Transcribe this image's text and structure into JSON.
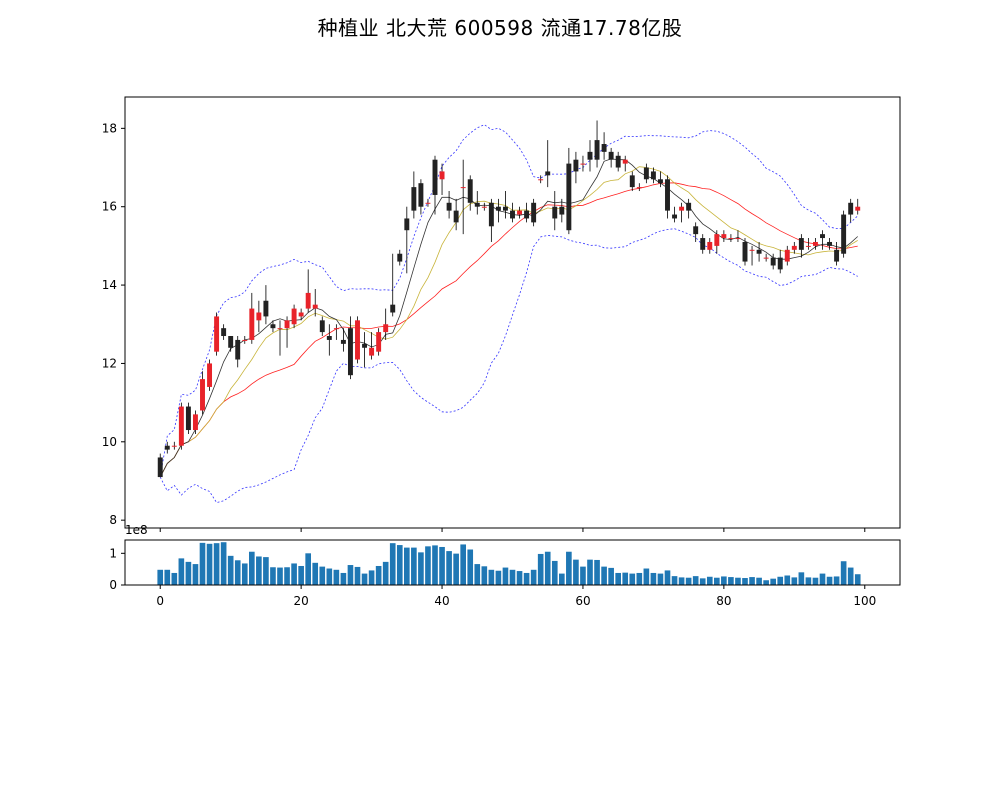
{
  "chart_data": [
    {
      "type": "candlestick",
      "title": "种植业 北大荒 600598 流通17.78亿股",
      "x_ticks": [
        0,
        20,
        40,
        60,
        80,
        100
      ],
      "y_ticks": [
        8,
        10,
        12,
        14,
        16,
        18
      ],
      "xlim": [
        -5,
        105
      ],
      "ylim": [
        7.8,
        18.8
      ],
      "grid": false,
      "up_color": "#e8232a",
      "down_color": "#222222",
      "ma_short_color": "#333333",
      "ma_mid_color": "#c8b43a",
      "ma_long_color": "#ff2020",
      "band_color": "#3333ff",
      "candles": [
        [
          0,
          9.6,
          9.1,
          9.7,
          9.1
        ],
        [
          1,
          9.9,
          9.8,
          10.0,
          9.7
        ],
        [
          2,
          9.9,
          9.9,
          10.0,
          9.8
        ],
        [
          3,
          9.9,
          10.9,
          11.0,
          9.8
        ],
        [
          4,
          10.9,
          10.3,
          11.0,
          10.2
        ],
        [
          5,
          10.3,
          10.7,
          10.8,
          10.2
        ],
        [
          6,
          10.8,
          11.6,
          11.8,
          10.7
        ],
        [
          7,
          11.4,
          12.0,
          12.1,
          11.3
        ],
        [
          8,
          12.3,
          13.2,
          13.3,
          12.2
        ],
        [
          9,
          12.9,
          12.7,
          13.0,
          12.6
        ],
        [
          10,
          12.7,
          12.4,
          12.7,
          12.3
        ],
        [
          11,
          12.6,
          12.1,
          12.7,
          11.9
        ],
        [
          12,
          12.6,
          12.6,
          12.7,
          12.5
        ],
        [
          13,
          12.6,
          13.4,
          13.8,
          12.5
        ],
        [
          14,
          13.1,
          13.3,
          13.6,
          12.8
        ],
        [
          15,
          13.6,
          13.2,
          14.0,
          13.0
        ],
        [
          16,
          13.0,
          12.9,
          13.1,
          12.8
        ],
        [
          17,
          12.9,
          12.9,
          13.1,
          12.2
        ],
        [
          18,
          12.9,
          13.1,
          13.2,
          12.4
        ],
        [
          19,
          13.0,
          13.4,
          13.5,
          12.9
        ],
        [
          20,
          13.2,
          13.3,
          13.4,
          13.1
        ],
        [
          21,
          13.4,
          13.8,
          14.4,
          13.3
        ],
        [
          22,
          13.4,
          13.5,
          13.9,
          13.2
        ],
        [
          23,
          13.1,
          12.8,
          13.2,
          12.7
        ],
        [
          24,
          12.7,
          12.6,
          13.0,
          12.2
        ],
        [
          25,
          12.9,
          12.9,
          13.0,
          12.6
        ],
        [
          26,
          12.6,
          12.5,
          12.9,
          12.3
        ],
        [
          27,
          12.9,
          11.7,
          13.2,
          11.6
        ],
        [
          28,
          12.1,
          13.1,
          13.2,
          12.0
        ],
        [
          29,
          12.5,
          12.4,
          12.8,
          11.9
        ],
        [
          30,
          12.2,
          12.4,
          12.8,
          12.1
        ],
        [
          31,
          12.3,
          12.8,
          12.9,
          12.2
        ],
        [
          32,
          12.8,
          13.0,
          13.4,
          12.6
        ],
        [
          33,
          13.5,
          13.3,
          14.8,
          13.2
        ],
        [
          34,
          14.8,
          14.6,
          14.9,
          14.5
        ],
        [
          35,
          15.7,
          15.4,
          16.0,
          14.3
        ],
        [
          36,
          16.5,
          15.9,
          16.9,
          15.7
        ],
        [
          37,
          16.6,
          16.0,
          16.7,
          15.8
        ],
        [
          38,
          16.1,
          16.1,
          16.2,
          16.0
        ],
        [
          39,
          17.2,
          16.3,
          17.3,
          15.8
        ],
        [
          40,
          16.7,
          16.9,
          17.1,
          16.3
        ],
        [
          41,
          16.1,
          15.9,
          16.4,
          15.7
        ],
        [
          42,
          15.9,
          15.6,
          16.2,
          15.4
        ],
        [
          43,
          16.5,
          16.5,
          17.2,
          15.3
        ],
        [
          44,
          16.7,
          16.1,
          16.8,
          15.9
        ],
        [
          45,
          16.1,
          16.0,
          16.4,
          15.8
        ],
        [
          46,
          16.0,
          16.0,
          16.1,
          15.9
        ],
        [
          47,
          16.1,
          15.5,
          16.2,
          15.1
        ],
        [
          48,
          16.0,
          15.9,
          16.2,
          15.6
        ],
        [
          49,
          16.0,
          15.9,
          16.4,
          15.7
        ],
        [
          50,
          15.9,
          15.7,
          16.1,
          15.6
        ],
        [
          51,
          15.8,
          15.9,
          16.0,
          15.7
        ],
        [
          52,
          15.9,
          15.7,
          16.1,
          15.6
        ],
        [
          53,
          16.1,
          15.6,
          16.2,
          15.5
        ],
        [
          54,
          16.7,
          16.7,
          16.8,
          16.6
        ],
        [
          55,
          16.9,
          16.8,
          17.7,
          16.5
        ],
        [
          56,
          16.0,
          15.7,
          16.4,
          15.4
        ],
        [
          57,
          16.0,
          15.8,
          16.2,
          15.6
        ],
        [
          58,
          17.1,
          15.4,
          17.5,
          15.3
        ],
        [
          59,
          17.2,
          16.9,
          17.4,
          16.6
        ],
        [
          60,
          17.1,
          17.1,
          17.3,
          16.9
        ],
        [
          61,
          17.4,
          17.2,
          17.7,
          16.9
        ],
        [
          62,
          17.7,
          17.2,
          18.2,
          17.0
        ],
        [
          63,
          17.6,
          17.4,
          17.9,
          17.2
        ],
        [
          64,
          17.4,
          17.2,
          17.5,
          17.0
        ],
        [
          65,
          17.3,
          17.0,
          17.4,
          16.9
        ],
        [
          66,
          17.1,
          17.2,
          17.3,
          16.9
        ],
        [
          67,
          16.8,
          16.5,
          16.9,
          16.4
        ],
        [
          68,
          16.5,
          16.5,
          16.6,
          16.4
        ],
        [
          69,
          17.0,
          16.7,
          17.1,
          16.6
        ],
        [
          70,
          16.9,
          16.7,
          17.0,
          16.6
        ],
        [
          71,
          16.7,
          16.6,
          16.9,
          16.5
        ],
        [
          72,
          16.7,
          15.9,
          16.8,
          15.7
        ],
        [
          73,
          15.8,
          15.7,
          16.0,
          15.6
        ],
        [
          74,
          15.9,
          16.0,
          16.1,
          15.6
        ],
        [
          75,
          16.1,
          15.9,
          16.2,
          15.7
        ],
        [
          76,
          15.5,
          15.3,
          15.6,
          15.1
        ],
        [
          77,
          15.2,
          14.9,
          15.3,
          14.8
        ],
        [
          78,
          14.9,
          15.1,
          15.2,
          14.8
        ],
        [
          79,
          15.0,
          15.3,
          15.4,
          14.8
        ],
        [
          80,
          15.2,
          15.3,
          15.4,
          15.1
        ],
        [
          81,
          15.2,
          15.2,
          15.3,
          15.1
        ],
        [
          82,
          15.2,
          15.2,
          15.4,
          15.1
        ],
        [
          83,
          15.1,
          14.6,
          15.2,
          14.5
        ],
        [
          84,
          14.9,
          14.9,
          15.0,
          14.5
        ],
        [
          85,
          14.9,
          14.8,
          15.1,
          14.6
        ],
        [
          86,
          14.7,
          14.7,
          14.8,
          14.6
        ],
        [
          87,
          14.7,
          14.5,
          14.8,
          14.4
        ],
        [
          88,
          14.7,
          14.4,
          14.9,
          14.3
        ],
        [
          89,
          14.6,
          14.9,
          15.0,
          14.5
        ],
        [
          90,
          14.9,
          15.0,
          15.1,
          14.8
        ],
        [
          91,
          15.2,
          14.9,
          15.3,
          14.7
        ],
        [
          92,
          15.0,
          15.0,
          15.2,
          14.9
        ],
        [
          93,
          15.0,
          15.1,
          15.2,
          14.9
        ],
        [
          94,
          15.3,
          15.2,
          15.4,
          14.9
        ],
        [
          95,
          15.1,
          15.0,
          15.2,
          14.9
        ],
        [
          96,
          14.9,
          14.6,
          15.1,
          14.5
        ],
        [
          97,
          15.8,
          14.8,
          15.9,
          14.7
        ],
        [
          98,
          16.1,
          15.8,
          16.2,
          15.6
        ],
        [
          99,
          15.9,
          16.0,
          16.2,
          15.8
        ]
      ]
    },
    {
      "type": "bar",
      "scale_label": "1e8",
      "x_ticks": [
        0,
        20,
        40,
        60,
        80,
        100
      ],
      "y_ticks": [
        0,
        1
      ],
      "xlim": [
        -5,
        105
      ],
      "ylim": [
        0,
        1.42
      ],
      "bar_color": "#1f77b4",
      "values": [
        0.48,
        0.48,
        0.38,
        0.84,
        0.73,
        0.66,
        1.33,
        1.3,
        1.32,
        1.35,
        0.92,
        0.78,
        0.68,
        1.05,
        0.9,
        0.88,
        0.56,
        0.55,
        0.56,
        0.68,
        0.6,
        1.0,
        0.7,
        0.58,
        0.52,
        0.48,
        0.38,
        0.63,
        0.57,
        0.36,
        0.46,
        0.6,
        0.73,
        1.32,
        1.26,
        1.18,
        1.18,
        1.03,
        1.22,
        1.25,
        1.2,
        1.07,
        0.99,
        1.28,
        1.12,
        0.66,
        0.59,
        0.48,
        0.45,
        0.55,
        0.48,
        0.44,
        0.38,
        0.48,
        0.98,
        1.05,
        0.76,
        0.36,
        1.05,
        0.8,
        0.58,
        0.8,
        0.79,
        0.58,
        0.54,
        0.38,
        0.39,
        0.36,
        0.38,
        0.52,
        0.38,
        0.36,
        0.46,
        0.28,
        0.24,
        0.23,
        0.28,
        0.21,
        0.26,
        0.23,
        0.27,
        0.25,
        0.23,
        0.22,
        0.25,
        0.23,
        0.15,
        0.2,
        0.26,
        0.3,
        0.24,
        0.4,
        0.24,
        0.23,
        0.36,
        0.26,
        0.27,
        0.75,
        0.55,
        0.34
      ]
    }
  ]
}
